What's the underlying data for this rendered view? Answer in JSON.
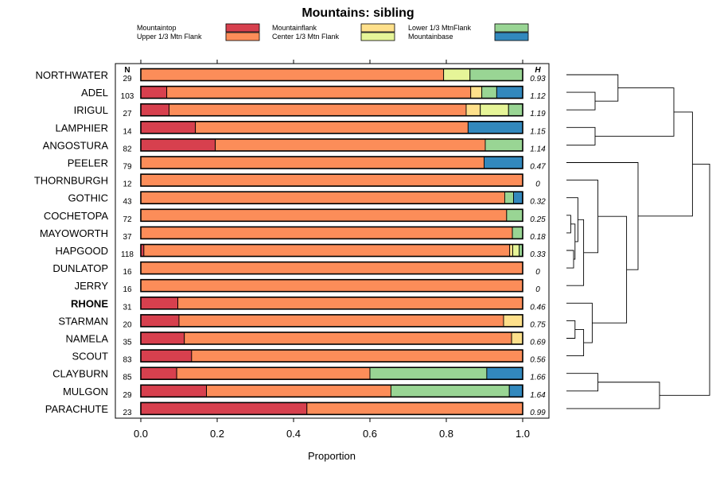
{
  "chart_data": {
    "type": "bar",
    "stacked": true,
    "orientation": "horizontal",
    "title": "Mountains: sibling",
    "xlabel": "Proportion",
    "xlim": [
      0,
      1
    ],
    "xticks": [
      "0.0",
      "0.2",
      "0.4",
      "0.6",
      "0.8",
      "1.0"
    ],
    "n_header": "N",
    "h_header": "H",
    "bold_category": "RHONE",
    "legend": [
      {
        "key": "mountaintop",
        "label": "Mountaintop",
        "color": "#d7404e"
      },
      {
        "key": "upper",
        "label": "Upper 1/3 Mtn Flank",
        "color": "#fc8d59"
      },
      {
        "key": "mountainflank",
        "label": "Mountainflank",
        "color": "#fee08b"
      },
      {
        "key": "center",
        "label": "Center 1/3 Mtn Flank",
        "color": "#e6f598"
      },
      {
        "key": "lower",
        "label": "Lower 1/3 MtnFlank",
        "color": "#99d594"
      },
      {
        "key": "base",
        "label": "Mountainbase",
        "color": "#3288bd"
      }
    ],
    "rows": [
      {
        "name": "NORTHWATER",
        "n": "29",
        "h": "0.93",
        "values": [
          0,
          0.793,
          0,
          0.069,
          0.138,
          0
        ]
      },
      {
        "name": "ADEL",
        "n": "103",
        "h": "1.12",
        "values": [
          0.068,
          0.796,
          0.029,
          0,
          0.039,
          0.068
        ]
      },
      {
        "name": "IRIGUL",
        "n": "27",
        "h": "1.19",
        "values": [
          0.074,
          0.778,
          0.037,
          0.074,
          0.037,
          0
        ]
      },
      {
        "name": "LAMPHIER",
        "n": "14",
        "h": "1.15",
        "values": [
          0.143,
          0.714,
          0,
          0,
          0,
          0.143
        ]
      },
      {
        "name": "ANGOSTURA",
        "n": "82",
        "h": "1.14",
        "values": [
          0.195,
          0.707,
          0,
          0,
          0.098,
          0
        ]
      },
      {
        "name": "PEELER",
        "n": "79",
        "h": "0.47",
        "values": [
          0,
          0.899,
          0,
          0,
          0,
          0.101
        ]
      },
      {
        "name": "THORNBURGH",
        "n": "12",
        "h": "0",
        "values": [
          0,
          1,
          0,
          0,
          0,
          0
        ]
      },
      {
        "name": "GOTHIC",
        "n": "43",
        "h": "0.32",
        "values": [
          0,
          0.953,
          0,
          0,
          0.023,
          0.023
        ]
      },
      {
        "name": "COCHETOPA",
        "n": "72",
        "h": "0.25",
        "values": [
          0,
          0.958,
          0,
          0,
          0.042,
          0
        ]
      },
      {
        "name": "MAYOWORTH",
        "n": "37",
        "h": "0.18",
        "values": [
          0,
          0.973,
          0,
          0,
          0.027,
          0
        ]
      },
      {
        "name": "HAPGOOD",
        "n": "118",
        "h": "0.33",
        "values": [
          0.008,
          0.958,
          0.008,
          0.017,
          0.008,
          0
        ]
      },
      {
        "name": "DUNLATOP",
        "n": "16",
        "h": "0",
        "values": [
          0,
          1,
          0,
          0,
          0,
          0
        ]
      },
      {
        "name": "JERRY",
        "n": "16",
        "h": "0",
        "values": [
          0,
          1,
          0,
          0,
          0,
          0
        ]
      },
      {
        "name": "RHONE",
        "n": "31",
        "h": "0.46",
        "values": [
          0.097,
          0.903,
          0,
          0,
          0,
          0
        ]
      },
      {
        "name": "STARMAN",
        "n": "20",
        "h": "0.75",
        "values": [
          0.1,
          0.85,
          0.05,
          0,
          0,
          0
        ]
      },
      {
        "name": "NAMELA",
        "n": "35",
        "h": "0.69",
        "values": [
          0.114,
          0.857,
          0.029,
          0,
          0,
          0
        ]
      },
      {
        "name": "SCOUT",
        "n": "83",
        "h": "0.56",
        "values": [
          0.133,
          0.867,
          0,
          0,
          0,
          0
        ]
      },
      {
        "name": "CLAYBURN",
        "n": "85",
        "h": "1.66",
        "values": [
          0.094,
          0.506,
          0,
          0,
          0.306,
          0.094
        ]
      },
      {
        "name": "MULGON",
        "n": "29",
        "h": "1.64",
        "values": [
          0.172,
          0.483,
          0,
          0,
          0.31,
          0.034
        ]
      },
      {
        "name": "PARACHUTE",
        "n": "23",
        "h": "0.99",
        "values": [
          0.435,
          0.565,
          0,
          0,
          0,
          0
        ]
      }
    ],
    "dendrogram": {
      "leaf_count": 20,
      "merges": [
        {
          "a": 1,
          "b": 2,
          "height": 0.2
        },
        {
          "a": 0,
          "b": "m0",
          "height": 0.36
        },
        {
          "a": 3,
          "b": 4,
          "height": 0.2
        },
        {
          "a": "m1",
          "b": "m2",
          "height": 0.75
        },
        {
          "a": 8,
          "b": 9,
          "height": 0.03
        },
        {
          "a": 10,
          "b": 11,
          "height": 0.05
        },
        {
          "a": "m4",
          "b": "m5",
          "height": 0.06
        },
        {
          "a": 7,
          "b": "m6",
          "height": 0.08
        },
        {
          "a": "m7",
          "b": 12,
          "height": 0.12
        },
        {
          "a": 6,
          "b": "m8",
          "height": 0.22
        },
        {
          "a": 14,
          "b": 15,
          "height": 0.06
        },
        {
          "a": "m10",
          "b": 16,
          "height": 0.12
        },
        {
          "a": 13,
          "b": "m11",
          "height": 0.18
        },
        {
          "a": "m9",
          "b": "m12",
          "height": 0.42
        },
        {
          "a": 5,
          "b": "m13",
          "height": 0.5
        },
        {
          "a": "m3",
          "b": "m14",
          "height": 0.88
        },
        {
          "a": 17,
          "b": 18,
          "height": 0.22
        },
        {
          "a": "m16",
          "b": 19,
          "height": 0.65
        },
        {
          "a": "m15",
          "b": "m17",
          "height": 1.0
        }
      ]
    }
  }
}
